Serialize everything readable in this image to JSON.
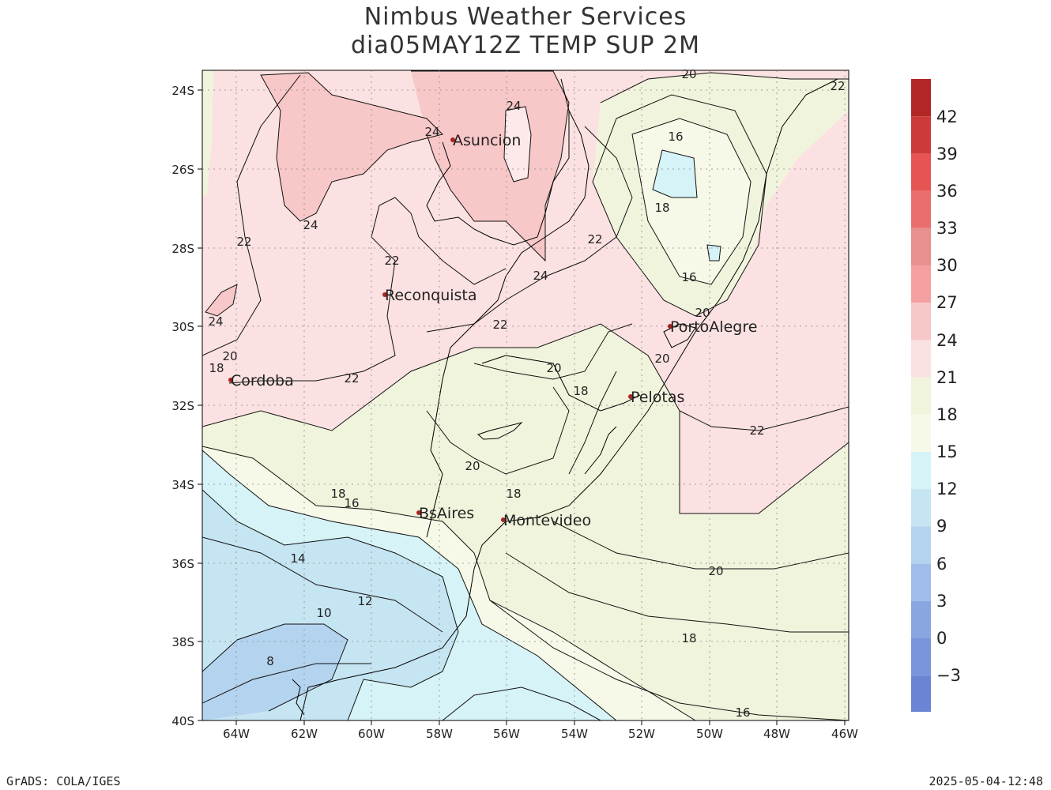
{
  "title_line1": "Nimbus Weather Services",
  "title_line2": "dia05MAY12Z TEMP SUP 2M",
  "footer_left": "GrADS: COLA/IGES",
  "footer_right": "2025-05-04-12:48",
  "axes": {
    "lat_ticks": [
      "24S",
      "26S",
      "28S",
      "30S",
      "32S",
      "34S",
      "36S",
      "38S",
      "40S"
    ],
    "lon_ticks": [
      "64W",
      "62W",
      "60W",
      "58W",
      "56W",
      "54W",
      "52W",
      "50W",
      "48W",
      "46W"
    ]
  },
  "colorbar": {
    "labels": [
      "42",
      "39",
      "36",
      "33",
      "30",
      "27",
      "24",
      "21",
      "18",
      "15",
      "12",
      "9",
      "6",
      "3",
      "0",
      "−3"
    ],
    "colors": [
      "#b22626",
      "#cc3a3a",
      "#e65454",
      "#eb6e6e",
      "#e89090",
      "#f5a0a0",
      "#f8c7c7",
      "#fbe1e1",
      "#f1f4dc",
      "#f6f9e8",
      "#d6f3f7",
      "#c6e5f2",
      "#b4d3ee",
      "#a0bce8",
      "#8aa6e2",
      "#7a95dc",
      "#6b84d4"
    ]
  },
  "cities": [
    {
      "name": "Asuncion"
    },
    {
      "name": "Reconquista"
    },
    {
      "name": "PortoAlegre"
    },
    {
      "name": "Cordoba"
    },
    {
      "name": "Pelotas"
    },
    {
      "name": "BsAires"
    },
    {
      "name": "Montevideo"
    }
  ],
  "contour_labels": [
    "24",
    "24",
    "24",
    "24",
    "24",
    "22",
    "22",
    "22",
    "22",
    "22",
    "22",
    "22",
    "20",
    "20",
    "20",
    "20",
    "20",
    "20",
    "20",
    "18",
    "18",
    "18",
    "18",
    "18",
    "18",
    "16",
    "16",
    "16",
    "16",
    "14",
    "12",
    "10",
    "8"
  ]
}
